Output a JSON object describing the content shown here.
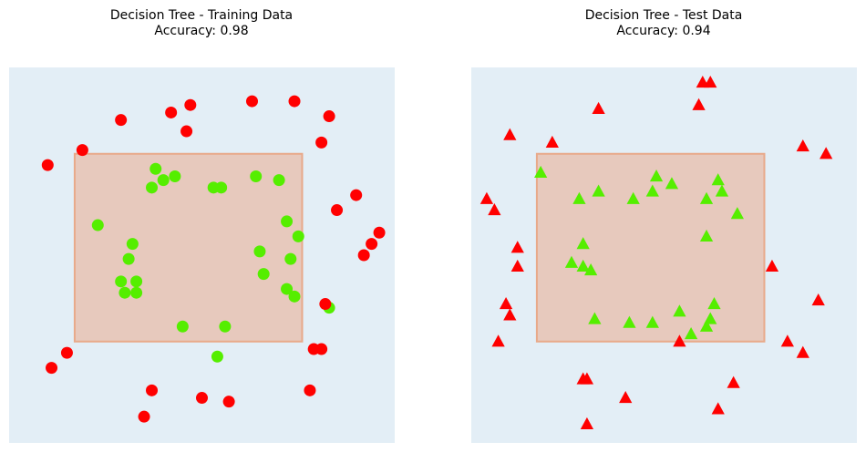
{
  "colors": {
    "background": "#e3eef6",
    "region_fill": "#e7c9bd",
    "region_edge": "#e8a98a",
    "class_inside": "#55ee00",
    "class_outside": "#ff0000"
  },
  "chart_data": [
    {
      "type": "scatter",
      "title_line1": "Decision Tree - Training Data",
      "title_line2": "Accuracy: 0.98",
      "marker": "circle",
      "decision_region": {
        "x": [
          0.17,
          0.76
        ],
        "y": [
          0.27,
          0.77
        ]
      },
      "xlim": [
        0,
        1
      ],
      "ylim": [
        0,
        1
      ],
      "series": [
        {
          "class": "inside",
          "color": "#55ee00",
          "points": [
            [
              0.83,
              0.36
            ],
            [
              0.4,
              0.7
            ],
            [
              0.38,
              0.73
            ],
            [
              0.43,
              0.71
            ],
            [
              0.64,
              0.71
            ],
            [
              0.7,
              0.7
            ],
            [
              0.37,
              0.68
            ],
            [
              0.53,
              0.68
            ],
            [
              0.55,
              0.68
            ],
            [
              0.23,
              0.58
            ],
            [
              0.72,
              0.59
            ],
            [
              0.75,
              0.55
            ],
            [
              0.32,
              0.53
            ],
            [
              0.65,
              0.51
            ],
            [
              0.73,
              0.49
            ],
            [
              0.31,
              0.49
            ],
            [
              0.33,
              0.43
            ],
            [
              0.29,
              0.43
            ],
            [
              0.3,
              0.4
            ],
            [
              0.33,
              0.4
            ],
            [
              0.66,
              0.45
            ],
            [
              0.72,
              0.41
            ],
            [
              0.74,
              0.39
            ],
            [
              0.45,
              0.31
            ],
            [
              0.56,
              0.31
            ],
            [
              0.54,
              0.23
            ]
          ]
        },
        {
          "class": "outside",
          "color": "#ff0000",
          "points": [
            [
              0.47,
              0.9
            ],
            [
              0.63,
              0.91
            ],
            [
              0.74,
              0.91
            ],
            [
              0.42,
              0.88
            ],
            [
              0.83,
              0.87
            ],
            [
              0.29,
              0.86
            ],
            [
              0.46,
              0.83
            ],
            [
              0.81,
              0.8
            ],
            [
              0.19,
              0.78
            ],
            [
              0.1,
              0.74
            ],
            [
              0.9,
              0.66
            ],
            [
              0.85,
              0.62
            ],
            [
              0.96,
              0.56
            ],
            [
              0.94,
              0.53
            ],
            [
              0.92,
              0.5
            ],
            [
              0.82,
              0.37
            ],
            [
              0.15,
              0.24
            ],
            [
              0.79,
              0.25
            ],
            [
              0.81,
              0.25
            ],
            [
              0.11,
              0.2
            ],
            [
              0.37,
              0.14
            ],
            [
              0.78,
              0.14
            ],
            [
              0.5,
              0.12
            ],
            [
              0.57,
              0.11
            ],
            [
              0.35,
              0.07
            ]
          ]
        }
      ]
    },
    {
      "type": "scatter",
      "title_line1": "Decision Tree - Test Data",
      "title_line2": "Accuracy: 0.94",
      "marker": "triangle",
      "decision_region": {
        "x": [
          0.17,
          0.76
        ],
        "y": [
          0.27,
          0.77
        ]
      },
      "xlim": [
        0,
        1
      ],
      "ylim": [
        0,
        1
      ],
      "series": [
        {
          "class": "inside",
          "color": "#55ee00",
          "points": [
            [
              0.18,
              0.72
            ],
            [
              0.48,
              0.71
            ],
            [
              0.64,
              0.7
            ],
            [
              0.65,
              0.67
            ],
            [
              0.52,
              0.69
            ],
            [
              0.47,
              0.67
            ],
            [
              0.33,
              0.67
            ],
            [
              0.28,
              0.65
            ],
            [
              0.42,
              0.65
            ],
            [
              0.61,
              0.65
            ],
            [
              0.69,
              0.61
            ],
            [
              0.61,
              0.55
            ],
            [
              0.29,
              0.53
            ],
            [
              0.26,
              0.48
            ],
            [
              0.29,
              0.47
            ],
            [
              0.31,
              0.46
            ],
            [
              0.63,
              0.37
            ],
            [
              0.54,
              0.35
            ],
            [
              0.32,
              0.33
            ],
            [
              0.62,
              0.33
            ],
            [
              0.41,
              0.32
            ],
            [
              0.47,
              0.32
            ],
            [
              0.61,
              0.31
            ],
            [
              0.57,
              0.29
            ]
          ]
        },
        {
          "class": "outside",
          "color": "#ff0000",
          "points": [
            [
              0.6,
              0.96
            ],
            [
              0.62,
              0.96
            ],
            [
              0.59,
              0.9
            ],
            [
              0.33,
              0.89
            ],
            [
              0.1,
              0.82
            ],
            [
              0.21,
              0.8
            ],
            [
              0.86,
              0.79
            ],
            [
              0.92,
              0.77
            ],
            [
              0.04,
              0.65
            ],
            [
              0.06,
              0.62
            ],
            [
              0.12,
              0.52
            ],
            [
              0.12,
              0.47
            ],
            [
              0.78,
              0.47
            ],
            [
              0.09,
              0.37
            ],
            [
              0.1,
              0.34
            ],
            [
              0.9,
              0.38
            ],
            [
              0.07,
              0.27
            ],
            [
              0.54,
              0.27
            ],
            [
              0.82,
              0.27
            ],
            [
              0.86,
              0.24
            ],
            [
              0.29,
              0.17
            ],
            [
              0.3,
              0.17
            ],
            [
              0.68,
              0.16
            ],
            [
              0.4,
              0.12
            ],
            [
              0.64,
              0.09
            ],
            [
              0.3,
              0.05
            ]
          ]
        }
      ]
    }
  ]
}
